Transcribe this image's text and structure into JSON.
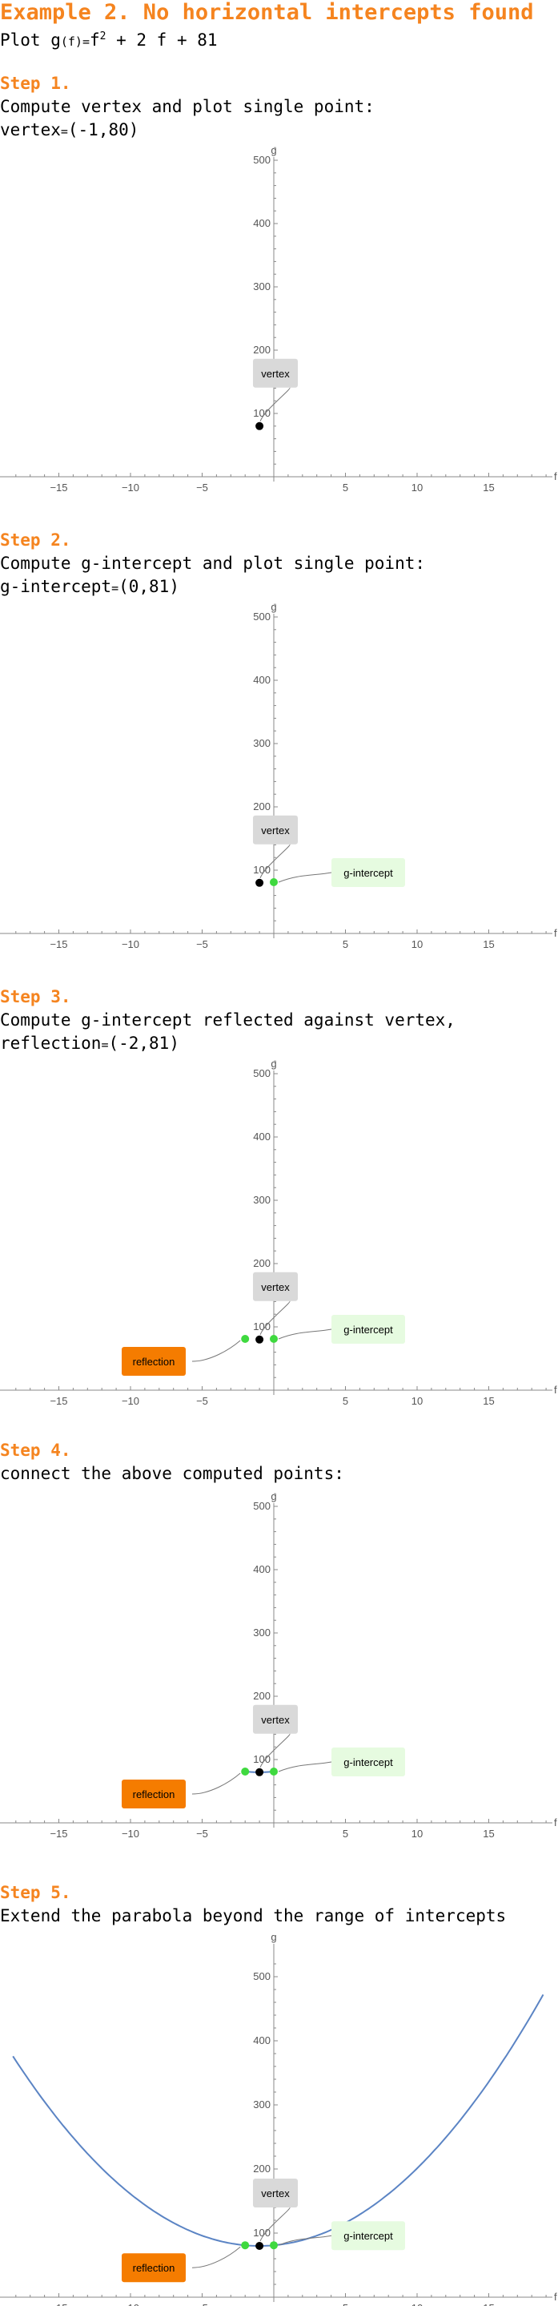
{
  "title": "Example 2. No horizontal intercepts found",
  "intro": {
    "text": "Plot g",
    "args": "(f)",
    "eq": "=",
    "fname": "f",
    "exp": "2",
    "rest": " + 2 f + 81"
  },
  "steps": [
    {
      "heading": "Step 1.",
      "line1": "Compute vertex and plot single point:",
      "line2_name": "vertex",
      "line2_eq": "=",
      "line2_val": "(-1,80)"
    },
    {
      "heading": "Step 2.",
      "line1": "Compute g-intercept and plot single point:",
      "line2_name": "g-intercept",
      "line2_eq": "=",
      "line2_val": "(0,81)"
    },
    {
      "heading": "Step 3.",
      "line1": "Compute g-intercept reflected against vertex,",
      "line2_name": "reflection",
      "line2_eq": "=",
      "line2_val": "(-2,81)"
    },
    {
      "heading": "Step 4.",
      "line1": "connect the above computed points:"
    },
    {
      "heading": "Step 5.",
      "line1": "Extend the parabola beyond the range of intercepts"
    }
  ],
  "colors": {
    "accent": "#f5841f",
    "curve": "#5b84c4",
    "vertex_point": "#000000",
    "intercept_point": "#3fd93f",
    "vertex_box": "#d9d9d9",
    "intercept_box": "#e6fbe0",
    "reflection_box": "#f57c00"
  },
  "chart_data": [
    {
      "type": "scatter",
      "xlabel": "f",
      "ylabel": "g",
      "xlim": [
        -19,
        19.5
      ],
      "ylim": [
        -10,
        520
      ],
      "xticks": [
        -15,
        -10,
        -5,
        5,
        10,
        15
      ],
      "yticks": [
        100,
        200,
        300,
        400,
        500
      ],
      "points": [
        {
          "name": "vertex",
          "x": -1,
          "y": 80,
          "color": "black"
        }
      ],
      "labels": {
        "vertex": "vertex"
      }
    },
    {
      "type": "scatter",
      "xlabel": "f",
      "ylabel": "g",
      "xlim": [
        -19,
        19.5
      ],
      "ylim": [
        -10,
        520
      ],
      "xticks": [
        -15,
        -10,
        -5,
        5,
        10,
        15
      ],
      "yticks": [
        100,
        200,
        300,
        400,
        500
      ],
      "points": [
        {
          "name": "vertex",
          "x": -1,
          "y": 80,
          "color": "black"
        },
        {
          "name": "g-intercept",
          "x": 0,
          "y": 81,
          "color": "green"
        }
      ],
      "labels": {
        "vertex": "vertex",
        "g_intercept": "g-intercept"
      }
    },
    {
      "type": "scatter",
      "xlabel": "f",
      "ylabel": "g",
      "xlim": [
        -19,
        19.5
      ],
      "ylim": [
        -10,
        520
      ],
      "xticks": [
        -15,
        -10,
        -5,
        5,
        10,
        15
      ],
      "yticks": [
        100,
        200,
        300,
        400,
        500
      ],
      "points": [
        {
          "name": "vertex",
          "x": -1,
          "y": 80,
          "color": "black"
        },
        {
          "name": "g-intercept",
          "x": 0,
          "y": 81,
          "color": "green"
        },
        {
          "name": "reflection",
          "x": -2,
          "y": 81,
          "color": "green"
        }
      ],
      "labels": {
        "vertex": "vertex",
        "g_intercept": "g-intercept",
        "reflection": "reflection"
      }
    },
    {
      "type": "line",
      "xlabel": "f",
      "ylabel": "g",
      "xlim": [
        -19,
        19.5
      ],
      "ylim": [
        -10,
        520
      ],
      "xticks": [
        -15,
        -10,
        -5,
        5,
        10,
        15
      ],
      "yticks": [
        100,
        200,
        300,
        400,
        500
      ],
      "points": [
        {
          "name": "vertex",
          "x": -1,
          "y": 80,
          "color": "black"
        },
        {
          "name": "g-intercept",
          "x": 0,
          "y": 81,
          "color": "green"
        },
        {
          "name": "reflection",
          "x": -2,
          "y": 81,
          "color": "green"
        }
      ],
      "curve": {
        "function": "f^2 + 2 f + 81",
        "domain": [
          -2,
          0
        ]
      },
      "labels": {
        "vertex": "vertex",
        "g_intercept": "g-intercept",
        "reflection": "reflection"
      }
    },
    {
      "type": "line",
      "xlabel": "f",
      "ylabel": "g",
      "xlim": [
        -19,
        19.5
      ],
      "ylim": [
        -10,
        520
      ],
      "xticks": [
        -15,
        -10,
        -5,
        5,
        10,
        15
      ],
      "yticks": [
        100,
        200,
        300,
        400,
        500
      ],
      "points": [
        {
          "name": "vertex",
          "x": -1,
          "y": 80,
          "color": "black"
        },
        {
          "name": "g-intercept",
          "x": 0,
          "y": 81,
          "color": "green"
        },
        {
          "name": "reflection",
          "x": -2,
          "y": 81,
          "color": "green"
        }
      ],
      "curve": {
        "function": "f^2 + 2 f + 81",
        "domain": [
          -18.2,
          18.8
        ]
      },
      "labels": {
        "vertex": "vertex",
        "g_intercept": "g-intercept",
        "reflection": "reflection"
      }
    }
  ]
}
